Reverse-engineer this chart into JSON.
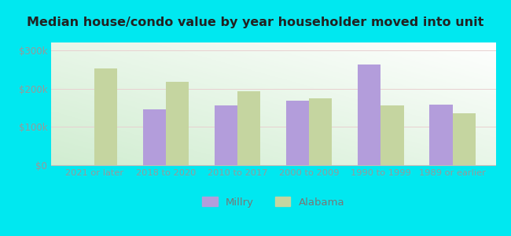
{
  "title": "Median house/condo value by year householder moved into unit",
  "categories": [
    "2021 or later",
    "2018 to 2020",
    "2010 to 2017",
    "2000 to 2009",
    "1990 to 1999",
    "1989 or earlier"
  ],
  "millry_values": [
    0,
    145000,
    155000,
    168000,
    262000,
    158000
  ],
  "alabama_values": [
    252000,
    218000,
    193000,
    175000,
    155000,
    135000
  ],
  "millry_color": "#b39ddb",
  "alabama_color": "#c5d5a0",
  "background_outer": "#00e8f0",
  "ylim": [
    0,
    320000
  ],
  "yticks": [
    0,
    100000,
    200000,
    300000
  ],
  "ytick_labels": [
    "$0",
    "$100k",
    "$200k",
    "$300k"
  ],
  "axis_text_color": "#999999",
  "title_color": "#222222",
  "bar_width": 0.32,
  "legend_labels": [
    "Millry",
    "Alabama"
  ]
}
